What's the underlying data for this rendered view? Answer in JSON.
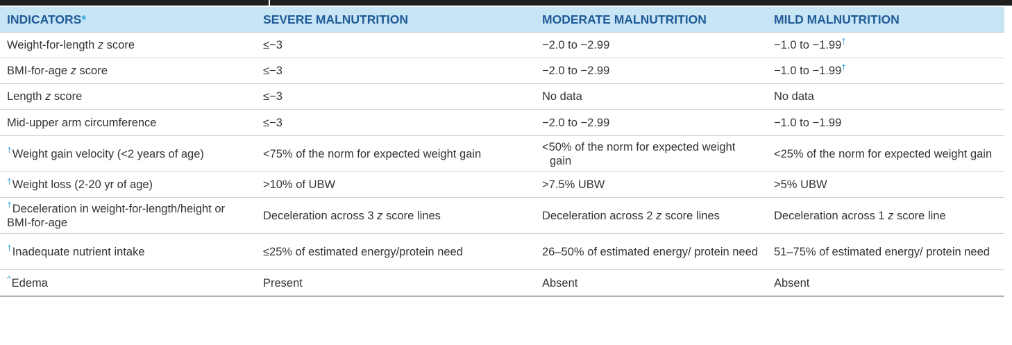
{
  "headers": [
    "INDICATORS",
    "SEVERE MALNUTRITION",
    "MODERATE MALNUTRITION",
    "MILD MALNUTRITION"
  ],
  "header_asterisk": "*",
  "rows": [
    {
      "ind_pre": "",
      "ind_a": "Weight-for-length ",
      "ind_z": "z",
      "ind_b": " score",
      "severe": "≤−3",
      "moderate": "−2.0 to −2.99",
      "mild": "−1.0 to −1.99",
      "mild_sym": "†"
    },
    {
      "ind_pre": "",
      "ind_a": "BMI-for-age ",
      "ind_z": "z",
      "ind_b": " score",
      "severe": "≤−3",
      "moderate": "−2.0 to −2.99",
      "mild": "−1.0 to −1.99",
      "mild_sym": "†"
    },
    {
      "ind_pre": "",
      "ind_a": "Length ",
      "ind_z": "z",
      "ind_b": " score",
      "severe": "≤−3",
      "moderate": "No data",
      "mild": "No data",
      "mild_sym": ""
    },
    {
      "ind_pre": "",
      "ind_a": "Mid-upper arm circumference",
      "ind_z": "",
      "ind_b": "",
      "severe": "≤−3",
      "moderate": "−2.0 to −2.99",
      "mild": "−1.0 to −1.99",
      "mild_sym": ""
    },
    {
      "ind_pre": "†",
      "ind_a": "Weight gain velocity (<2 years of age)",
      "ind_z": "",
      "ind_b": "",
      "severe": "<75% of the norm for expected weight gain",
      "moderate": "<50% of the norm for expected weight gain",
      "mild": "<25% of the norm for expected weight gain",
      "mild_sym": ""
    },
    {
      "ind_pre": "†",
      "ind_a": "Weight loss (2-20 yr of age)",
      "ind_z": "",
      "ind_b": "",
      "severe": ">10% of UBW",
      "moderate": ">7.5% UBW",
      "mild": ">5% UBW",
      "mild_sym": ""
    },
    {
      "ind_pre": "†",
      "ind_a": "Deceleration in weight-for-length/height or BMI-for-age",
      "ind_z": "",
      "ind_b": "",
      "severe_a": "Deceleration across 3 ",
      "severe_z": "z",
      "severe_b": " score lines",
      "moderate_a": "Deceleration across 2 ",
      "moderate_z": "z",
      "moderate_b": " score lines",
      "mild_a": "Deceleration across 1 ",
      "mild_z": "z",
      "mild_b": " score line",
      "mild_sym": ""
    },
    {
      "ind_pre": "†",
      "ind_a": "Inadequate nutrient intake",
      "ind_z": "",
      "ind_b": "",
      "severe": "≤25% of estimated energy/protein need",
      "moderate": "26–50% of estimated energy/ protein need",
      "mild": "51–75% of estimated energy/ protein need",
      "mild_sym": ""
    },
    {
      "ind_pre": "^",
      "ind_a": "Edema",
      "ind_z": "",
      "ind_b": "",
      "severe": "Present",
      "moderate": "Absent",
      "mild": "Absent",
      "mild_sym": ""
    }
  ]
}
